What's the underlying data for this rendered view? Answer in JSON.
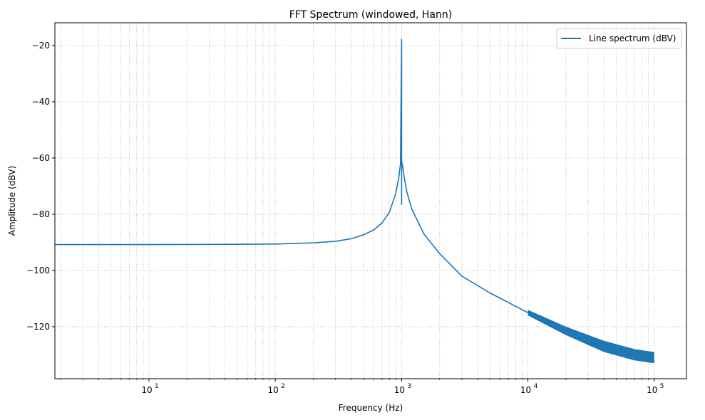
{
  "chart_data": {
    "type": "line",
    "title": "FFT Spectrum (windowed, Hann)",
    "xlabel": "Frequency (Hz)",
    "ylabel": "Amplitude (dBV)",
    "xscale": "log",
    "xlim": [
      1.8,
      180000
    ],
    "ylim": [
      -138.5,
      -11.9
    ],
    "grid": true,
    "grid_style": "dotted, major and minor",
    "legend_position": "upper right",
    "x_ticks": [
      {
        "value": 10,
        "label": "10^1"
      },
      {
        "value": 100,
        "label": "10^2"
      },
      {
        "value": 1000,
        "label": "10^3"
      },
      {
        "value": 10000,
        "label": "10^4"
      },
      {
        "value": 100000,
        "label": "10^5"
      }
    ],
    "y_ticks": [
      -20,
      -40,
      -60,
      -80,
      -100,
      -120
    ],
    "series": [
      {
        "name": "Line spectrum (dBV)",
        "color": "#1f77b4",
        "x": [
          1.8,
          10,
          50,
          100,
          200,
          300,
          400,
          500,
          600,
          700,
          800,
          900,
          950,
          980,
          1000,
          1000,
          1000,
          1020,
          1050,
          1100,
          1200,
          1500,
          2000,
          3000,
          5000,
          10000,
          20000,
          50000,
          100000
        ],
        "values": [
          -90.8,
          -90.8,
          -90.7,
          -90.6,
          -90.2,
          -89.6,
          -88.7,
          -87.3,
          -85.6,
          -83.1,
          -79.3,
          -72.5,
          -67,
          -62,
          -17.8,
          -76.5,
          -61,
          -63,
          -67,
          -72,
          -78,
          -87,
          -94,
          -102,
          -108,
          -115,
          -121,
          -127,
          -131
        ]
      }
    ],
    "peak": {
      "frequency_hz": 1000,
      "amplitude_dbv": -17.8
    }
  },
  "legend": {
    "label": "Line spectrum (dBV)"
  },
  "ticks": {
    "y": [
      "−20",
      "−40",
      "−60",
      "−80",
      "−100",
      "−120"
    ],
    "x_base": [
      "10",
      "10",
      "10",
      "10",
      "10"
    ],
    "x_exp": [
      "1",
      "2",
      "3",
      "4",
      "5"
    ]
  }
}
